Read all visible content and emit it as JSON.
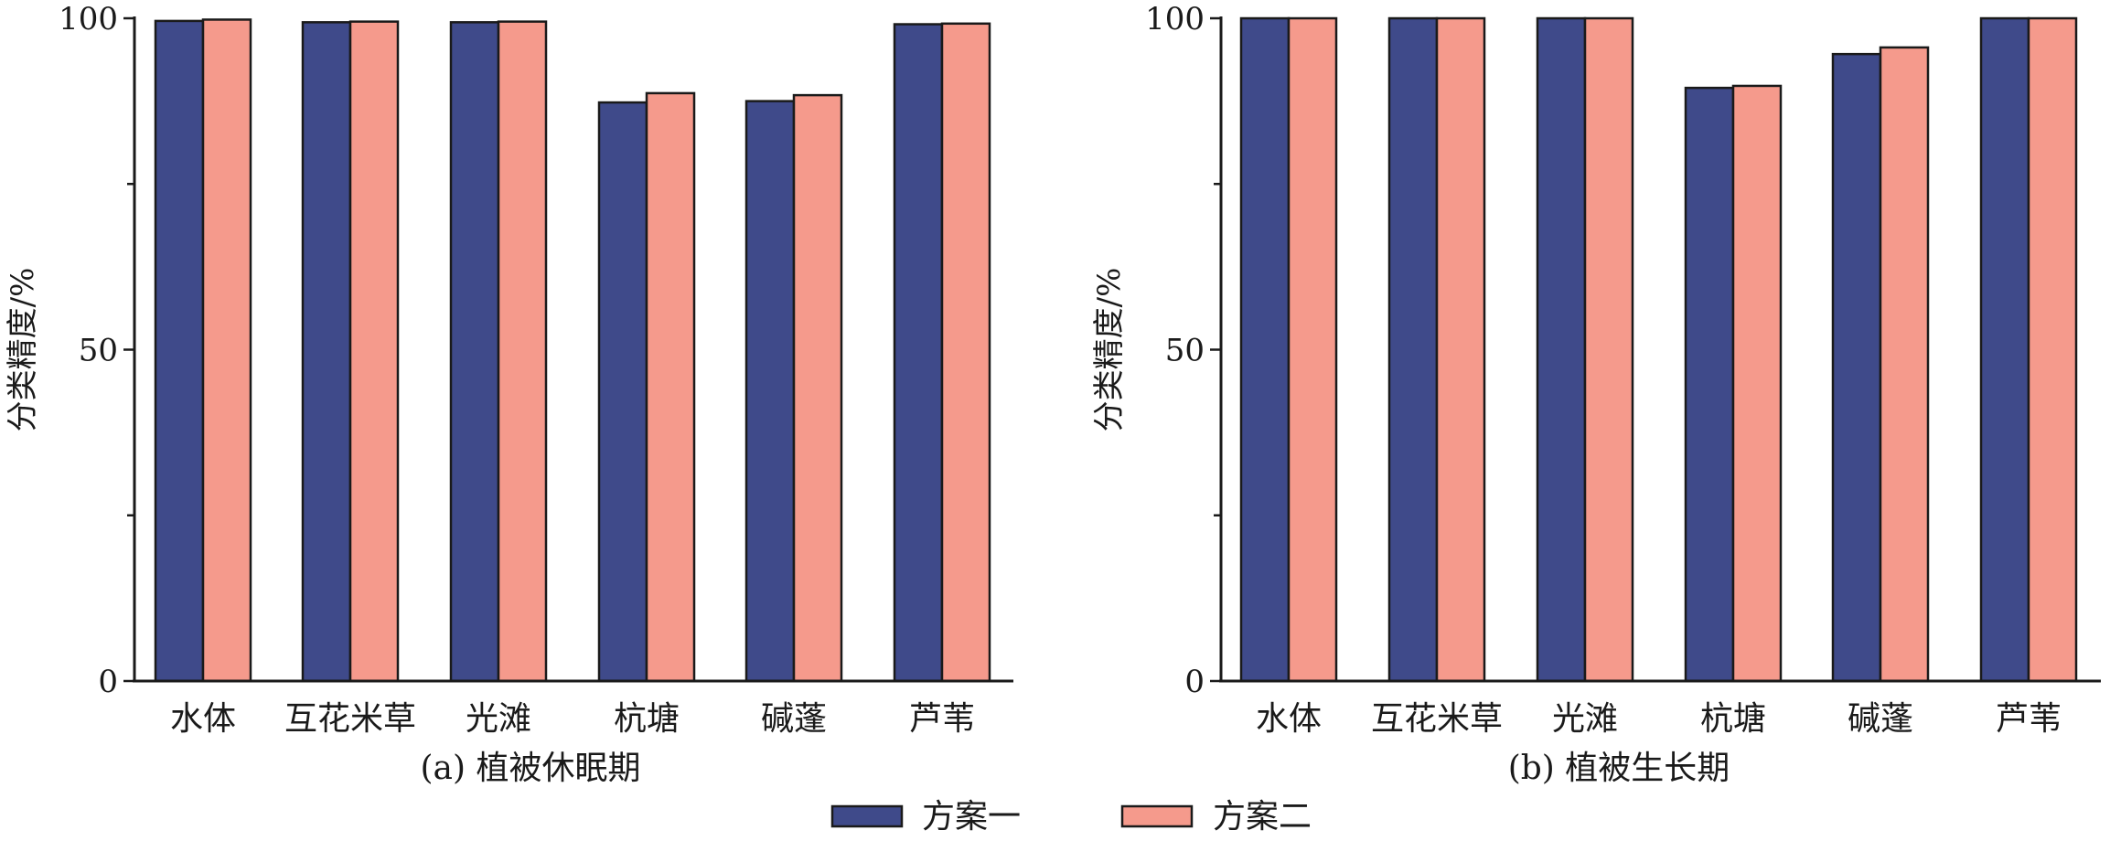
{
  "chart_data": [
    {
      "type": "bar",
      "caption": "(a) 植被休眠期",
      "ylabel": "分类精度/%",
      "ylim": [
        0,
        100
      ],
      "yticks": [
        "0",
        "50",
        "100"
      ],
      "categories": [
        "水体",
        "互花米草",
        "光滩",
        "杭塘",
        "碱蓬",
        "芦苇"
      ],
      "series": [
        {
          "name": "方案一",
          "color": "#3f4a8a",
          "values": [
            99.6,
            99.4,
            99.4,
            87.3,
            87.5,
            99.1
          ]
        },
        {
          "name": "方案二",
          "color": "#f59a8c",
          "values": [
            99.8,
            99.5,
            99.5,
            88.7,
            88.4,
            99.2
          ]
        }
      ]
    },
    {
      "type": "bar",
      "caption": "(b) 植被生长期",
      "ylabel": "分类精度/%",
      "ylim": [
        0,
        100
      ],
      "yticks": [
        "0",
        "50",
        "100"
      ],
      "categories": [
        "水体",
        "互花米草",
        "光滩",
        "杭塘",
        "碱蓬",
        "芦苇"
      ],
      "series": [
        {
          "name": "方案一",
          "color": "#3f4a8a",
          "values": [
            100,
            100,
            100,
            89.5,
            94.6,
            100
          ]
        },
        {
          "name": "方案二",
          "color": "#f59a8c",
          "values": [
            100,
            100,
            100,
            89.8,
            95.6,
            100
          ]
        }
      ]
    }
  ],
  "legend": [
    {
      "label": "方案一",
      "color": "#3f4a8a"
    },
    {
      "label": "方案二",
      "color": "#f59a8c"
    }
  ]
}
